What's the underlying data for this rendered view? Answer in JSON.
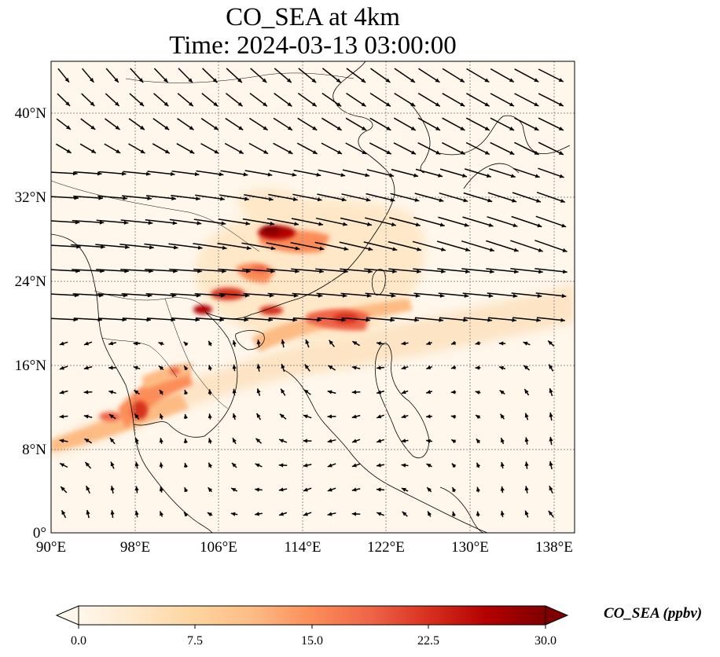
{
  "title": {
    "line1": "CO_SEA at 4km",
    "line2": "Time: 2024-03-13 03:00:00"
  },
  "map": {
    "lon_range": [
      90,
      140
    ],
    "lat_range": [
      0,
      45
    ],
    "lon_ticks": [
      "90°E",
      "98°E",
      "106°E",
      "114°E",
      "122°E",
      "130°E",
      "138°E"
    ],
    "lat_ticks": [
      "0°",
      "8°N",
      "16°N",
      "24°N",
      "32°N",
      "40°N"
    ],
    "gridlines": true,
    "variable": "CO_SEA",
    "colormap": "OrRd"
  },
  "colorbar": {
    "label": "CO_SEA (ppbv)",
    "ticks": [
      "0.0",
      "7.5",
      "15.0",
      "22.5",
      "30.0"
    ],
    "range": [
      0,
      30
    ],
    "colors": [
      "#fff7ec",
      "#fee8c8",
      "#fdd49e",
      "#fdbb84",
      "#fc8d59",
      "#ef6548",
      "#d7301f",
      "#b30000",
      "#7f0000"
    ]
  }
}
